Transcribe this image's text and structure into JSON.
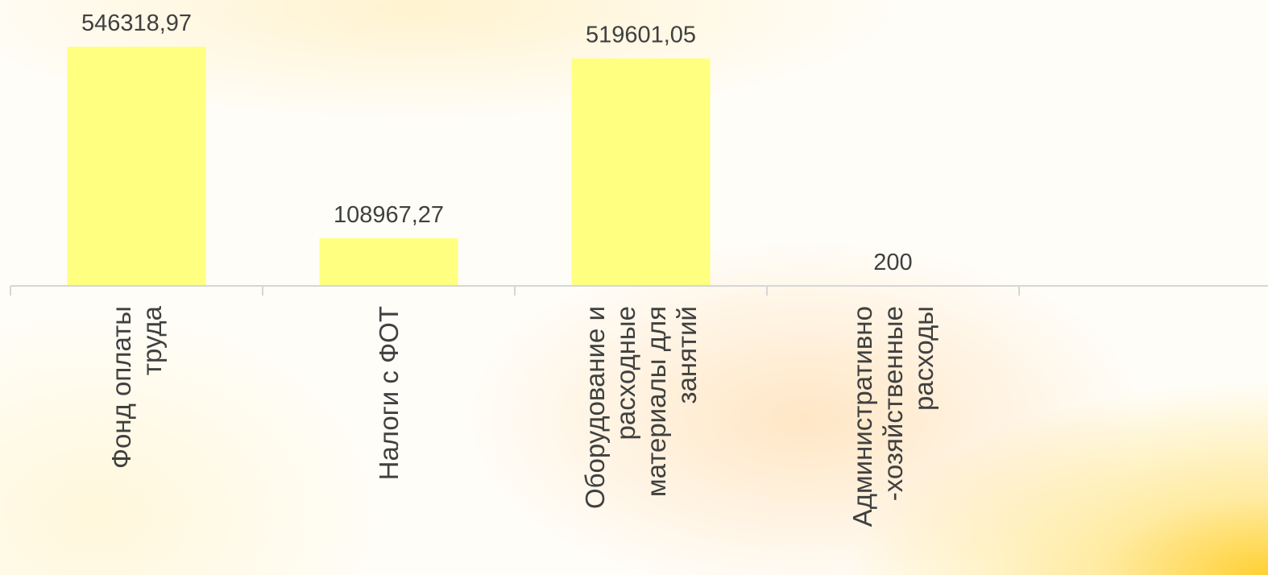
{
  "chart_data": {
    "type": "bar",
    "categories": [
      "Фонд оплаты труда",
      "Налоги с ФОТ",
      "Оборудование и расходные материалы для занятий",
      "Административно-хозяйственные расходы"
    ],
    "category_lines": [
      [
        "Фонд оплаты",
        "труда"
      ],
      [
        "Налоги с ФОТ"
      ],
      [
        "Оборудование и",
        "расходные",
        "материалы для",
        "занятий"
      ],
      [
        "Административно",
        "-хозяйственные",
        "расходы"
      ]
    ],
    "values": [
      546318.97,
      108967.27,
      519601.05,
      200
    ],
    "data_labels": [
      "546318,97",
      "108967,27",
      "519601,05",
      "200"
    ],
    "colors": {
      "bar": "#ffff80",
      "axis": "#d6d6d6",
      "text": "#404040"
    },
    "grid": false,
    "legend": "none"
  }
}
